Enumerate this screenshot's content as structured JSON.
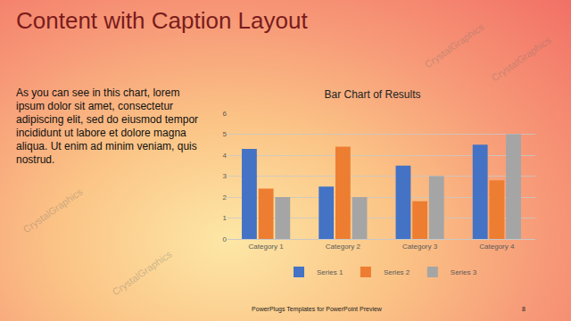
{
  "slide": {
    "title": "Content with Caption Layout",
    "caption": "As you can see in this chart, lorem ipsum dolor sit amet, consectetur adipiscing elit, sed do eiusmod tempor incididunt ut labore et dolore magna aliqua. Ut enim ad minim veniam, quis nostrud.",
    "footer": "PowerPlugs Templates for PowerPoint Preview",
    "page_number": 8,
    "watermark": "CrystalGraphics"
  },
  "chart_data": {
    "type": "bar",
    "title": "Bar Chart of Results",
    "categories": [
      "Category 1",
      "Category 2",
      "Category 3",
      "Category 4"
    ],
    "series": [
      {
        "name": "Series 1",
        "color": "#4472c4",
        "values": [
          4.3,
          2.5,
          3.5,
          4.5
        ]
      },
      {
        "name": "Series 2",
        "color": "#ed7d31",
        "values": [
          2.4,
          4.4,
          1.8,
          2.8
        ]
      },
      {
        "name": "Series 3",
        "color": "#a5a5a5",
        "values": [
          2.0,
          2.0,
          3.0,
          5.0
        ]
      }
    ],
    "ylim": [
      0,
      6
    ],
    "yticks": [
      0,
      1,
      2,
      3,
      4,
      5,
      6
    ],
    "grid": true,
    "legend": "bottom"
  }
}
